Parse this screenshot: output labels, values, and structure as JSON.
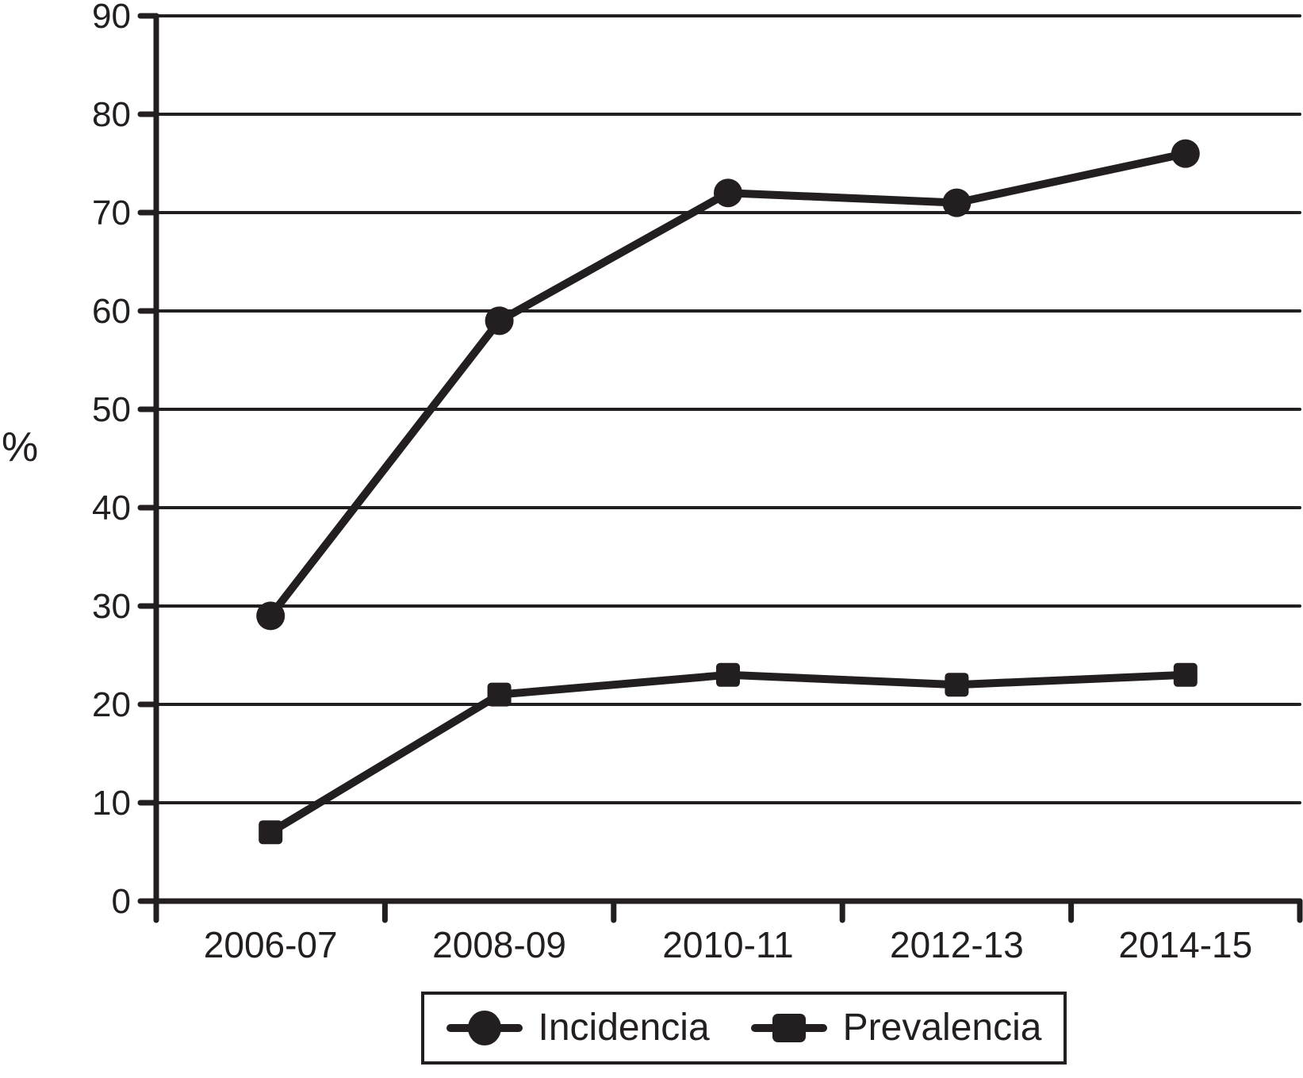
{
  "chart_data": {
    "type": "line",
    "title": "",
    "xlabel": "",
    "ylabel": "%",
    "categories": [
      "2006-07",
      "2008-09",
      "2010-11",
      "2012-13",
      "2014-15"
    ],
    "series": [
      {
        "name": "Incidencia",
        "marker": "circle",
        "values": [
          29,
          59,
          72,
          71,
          76
        ]
      },
      {
        "name": "Prevalencia",
        "marker": "square",
        "values": [
          7,
          21,
          23,
          22,
          23
        ]
      }
    ],
    "ylim": [
      0,
      90
    ],
    "ytick_step": 10,
    "yticks": [
      0,
      10,
      20,
      30,
      40,
      50,
      60,
      70,
      80,
      90
    ],
    "grid": true,
    "legend_position": "bottom-boxed",
    "line_color": "#231f20",
    "background": "#ffffff"
  }
}
